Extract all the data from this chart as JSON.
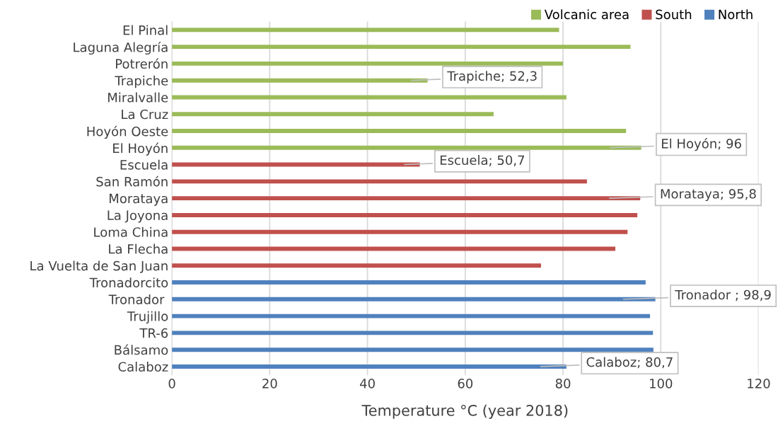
{
  "chart_data": {
    "type": "bar",
    "orientation": "horizontal",
    "xlabel": "Temperature °C (year 2018)",
    "categories": [
      "El Pinal",
      "Laguna Alegría",
      "Potrerón",
      "Trapiche",
      "Miralvalle",
      "La Cruz",
      "Hoyón Oeste",
      "El Hoyón",
      "Escuela",
      "San Ramón",
      "Morataya",
      "La Joyona",
      "Loma China",
      "La Flecha",
      "La Vuelta de San Juan",
      "Tronadorcito",
      "Tronador ",
      "Trujillo",
      "TR-6",
      "Bálsamo",
      "Calaboz"
    ],
    "series": [
      {
        "name": "Volcanic area",
        "color": "#9bbb59",
        "values": [
          79.2,
          93.8,
          80.0,
          52.3,
          80.7,
          65.8,
          92.9,
          96,
          null,
          null,
          null,
          null,
          null,
          null,
          null,
          null,
          null,
          null,
          null,
          null,
          null
        ],
        "value_labels": [
          null,
          null,
          null,
          "Trapiche; 52,3",
          null,
          null,
          null,
          "El Hoyón; 96",
          null,
          null,
          null,
          null,
          null,
          null,
          null,
          null,
          null,
          null,
          null,
          null,
          null
        ]
      },
      {
        "name": "South",
        "color": "#c0504d",
        "values": [
          null,
          null,
          null,
          null,
          null,
          null,
          null,
          null,
          50.7,
          84.9,
          95.8,
          95.2,
          93.2,
          90.7,
          75.5,
          null,
          null,
          null,
          null,
          null,
          null
        ],
        "value_labels": [
          null,
          null,
          null,
          null,
          null,
          null,
          null,
          null,
          "Escuela; 50,7",
          null,
          "Morataya; 95,8",
          null,
          null,
          null,
          null,
          null,
          null,
          null,
          null,
          null,
          null
        ]
      },
      {
        "name": "North",
        "color": "#4f81bd",
        "values": [
          null,
          null,
          null,
          null,
          null,
          null,
          null,
          null,
          null,
          null,
          null,
          null,
          null,
          null,
          null,
          96.9,
          98.9,
          97.8,
          98.4,
          98.5,
          80.7
        ],
        "value_labels": [
          null,
          null,
          null,
          null,
          null,
          null,
          null,
          null,
          null,
          null,
          null,
          null,
          null,
          null,
          null,
          null,
          "Tronador ; 98,9",
          null,
          null,
          null,
          "Calaboz; 80,7"
        ]
      }
    ],
    "xlim": [
      0,
      120
    ],
    "xticks": [
      0,
      20,
      40,
      60,
      80,
      100,
      120
    ],
    "grid": "x",
    "legend": "top right"
  }
}
